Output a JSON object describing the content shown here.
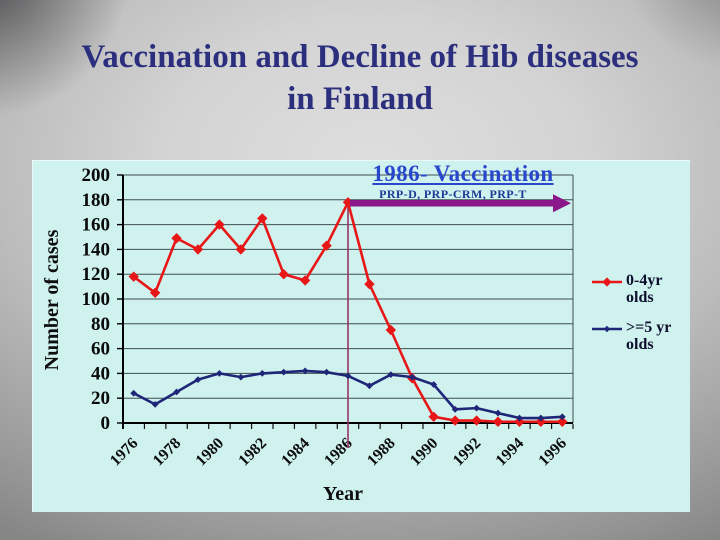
{
  "slide": {
    "title_line1": "Vaccination and Decline of Hib diseases",
    "title_line2": "in Finland",
    "title_color": "#2b2f7d"
  },
  "chart_data": {
    "type": "line",
    "x": [
      1976,
      1977,
      1978,
      1979,
      1980,
      1981,
      1982,
      1983,
      1984,
      1985,
      1986,
      1987,
      1988,
      1989,
      1990,
      1991,
      1992,
      1993,
      1994,
      1995,
      1996
    ],
    "x_tick_labels": [
      "1976",
      "1978",
      "1980",
      "1982",
      "1984",
      "1986",
      "1988",
      "1990",
      "1992",
      "1994",
      "1996"
    ],
    "xlabel": "Year",
    "ylabel": "Number of cases",
    "ylim": [
      0,
      200
    ],
    "ytick_step": 20,
    "y_tick_labels": [
      "0",
      "20",
      "40",
      "60",
      "80",
      "100",
      "120",
      "140",
      "160",
      "180",
      "200"
    ],
    "grid": true,
    "plot_bg": "#cff2ef",
    "legend_position": "right",
    "series": [
      {
        "name": "0-4yr olds",
        "marker": "diamond",
        "color": "#e81717",
        "values": [
          118,
          105,
          149,
          140,
          160,
          140,
          165,
          120,
          115,
          143,
          178,
          112,
          75,
          36,
          5,
          2,
          2,
          1,
          1,
          1,
          1
        ]
      },
      {
        "name": ">=5 yr olds",
        "marker": "square",
        "color": "#1f2678",
        "values": [
          24,
          15,
          25,
          35,
          40,
          37,
          40,
          41,
          42,
          41,
          38,
          30,
          39,
          37,
          31,
          11,
          12,
          8,
          4,
          4,
          5
        ]
      }
    ],
    "annotation": {
      "heading": "1986- Vaccination",
      "subheading": "PRP-D, PRP-CRM, PRP-T",
      "heading_color": "#2847cd",
      "subheading_color": "#1c3a94",
      "arrow_color": "#8a188a",
      "vline_year": "1986",
      "vline_color": "#993366"
    }
  }
}
